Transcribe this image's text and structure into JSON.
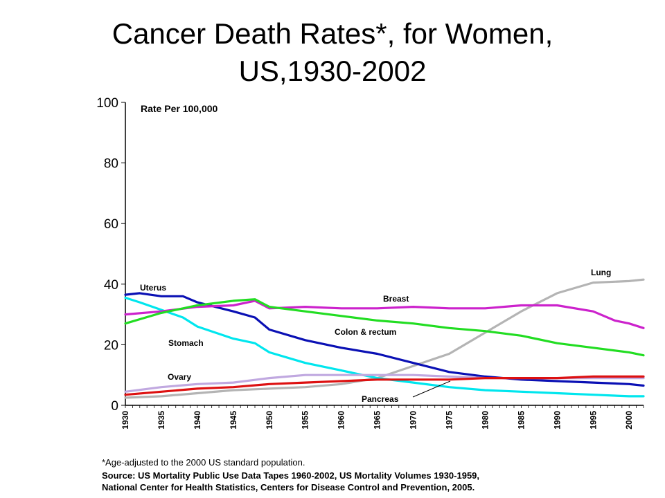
{
  "title_line1": "Cancer Death Rates*, for Women,",
  "title_line2": "US,1930-2002",
  "footnotes": {
    "line1": "*Age-adjusted to the 2000 US standard population.",
    "line2": "Source:  US Mortality Public Use Data Tapes 1960-2002, US Mortality Volumes 1930-1959,",
    "line3": "National Center for Health Statistics, Centers for Disease Control and Prevention, 2005."
  },
  "chart_data": {
    "type": "line",
    "title": "Cancer Death Rates*, for Women, US,1930-2002",
    "ylabel": "Rate Per 100,000",
    "xlabel": "",
    "xlim": [
      1930,
      2002
    ],
    "ylim": [
      0,
      100
    ],
    "yticks": [
      0,
      20,
      40,
      60,
      80,
      100
    ],
    "xticks": [
      1930,
      1935,
      1940,
      1945,
      1950,
      1955,
      1960,
      1965,
      1970,
      1975,
      1980,
      1985,
      1990,
      1995,
      2000
    ],
    "grid": false,
    "series": [
      {
        "name": "Lung",
        "color": "#b4b4b4",
        "x": [
          1930,
          1935,
          1940,
          1945,
          1950,
          1955,
          1960,
          1965,
          1970,
          1975,
          1980,
          1985,
          1990,
          1995,
          2000,
          2002
        ],
        "y": [
          2.5,
          3,
          4,
          5,
          5.5,
          6,
          7,
          9,
          13,
          17,
          24,
          31,
          37,
          40.5,
          41,
          41.5
        ]
      },
      {
        "name": "Uterus",
        "color": "#0a10b4",
        "x": [
          1930,
          1932,
          1935,
          1938,
          1940,
          1945,
          1948,
          1950,
          1955,
          1960,
          1965,
          1970,
          1975,
          1980,
          1985,
          1990,
          1995,
          2000,
          2002
        ],
        "y": [
          36.5,
          37,
          36,
          36,
          34,
          31,
          29,
          25,
          21.5,
          19,
          17,
          14,
          11,
          9.5,
          8.5,
          8,
          7.5,
          7,
          6.5
        ]
      },
      {
        "name": "Stomach",
        "color": "#00e6ee",
        "x": [
          1930,
          1932,
          1935,
          1938,
          1940,
          1945,
          1948,
          1950,
          1955,
          1960,
          1965,
          1970,
          1975,
          1980,
          1985,
          1990,
          1995,
          2000,
          2002
        ],
        "y": [
          35.5,
          34,
          31.5,
          29,
          26,
          22,
          20.5,
          17.5,
          14,
          11.5,
          9,
          7.5,
          6,
          5,
          4.5,
          4,
          3.5,
          3,
          3
        ]
      },
      {
        "name": "Breast",
        "color": "#cc22cc",
        "x": [
          1930,
          1935,
          1940,
          1945,
          1948,
          1950,
          1955,
          1960,
          1965,
          1970,
          1975,
          1980,
          1985,
          1990,
          1995,
          1998,
          2000,
          2002
        ],
        "y": [
          30,
          31,
          32.5,
          33,
          34.5,
          32,
          32.5,
          32,
          32,
          32.5,
          32,
          32,
          33,
          33,
          31,
          28,
          27,
          25.5
        ]
      },
      {
        "name": "Colon & rectum",
        "color": "#22dd22",
        "x": [
          1930,
          1935,
          1940,
          1945,
          1948,
          1950,
          1955,
          1960,
          1965,
          1970,
          1975,
          1980,
          1985,
          1990,
          1995,
          2000,
          2002
        ],
        "y": [
          27,
          30.5,
          33,
          34.5,
          35,
          32.5,
          31,
          29.5,
          28,
          27,
          25.5,
          24.5,
          23,
          20.5,
          19,
          17.5,
          16.5
        ]
      },
      {
        "name": "Ovary",
        "color": "#c0a8e0",
        "x": [
          1930,
          1935,
          1940,
          1945,
          1950,
          1955,
          1960,
          1965,
          1970,
          1975,
          1980,
          1985,
          1990,
          1995,
          2000,
          2002
        ],
        "y": [
          4.5,
          6,
          7,
          7.5,
          9,
          10,
          10,
          10,
          10,
          9.5,
          9,
          9,
          9,
          9,
          9,
          9
        ]
      },
      {
        "name": "Pancreas",
        "color": "#dd1111",
        "x": [
          1930,
          1935,
          1940,
          1945,
          1950,
          1955,
          1960,
          1965,
          1970,
          1975,
          1980,
          1985,
          1990,
          1995,
          2000,
          2002
        ],
        "y": [
          3.5,
          4.5,
          5.5,
          6,
          7,
          7.5,
          8,
          8.5,
          8.5,
          8.5,
          9,
          9,
          9,
          9.5,
          9.5,
          9.5
        ]
      }
    ],
    "annotations": [
      {
        "text": "Lung",
        "series": "Lung"
      },
      {
        "text": "Uterus",
        "series": "Uterus"
      },
      {
        "text": "Breast",
        "series": "Breast"
      },
      {
        "text": "Colon & rectum",
        "series": "Colon & rectum"
      },
      {
        "text": "Stomach",
        "series": "Stomach"
      },
      {
        "text": "Ovary",
        "series": "Ovary"
      },
      {
        "text": "Pancreas",
        "series": "Pancreas"
      }
    ]
  }
}
